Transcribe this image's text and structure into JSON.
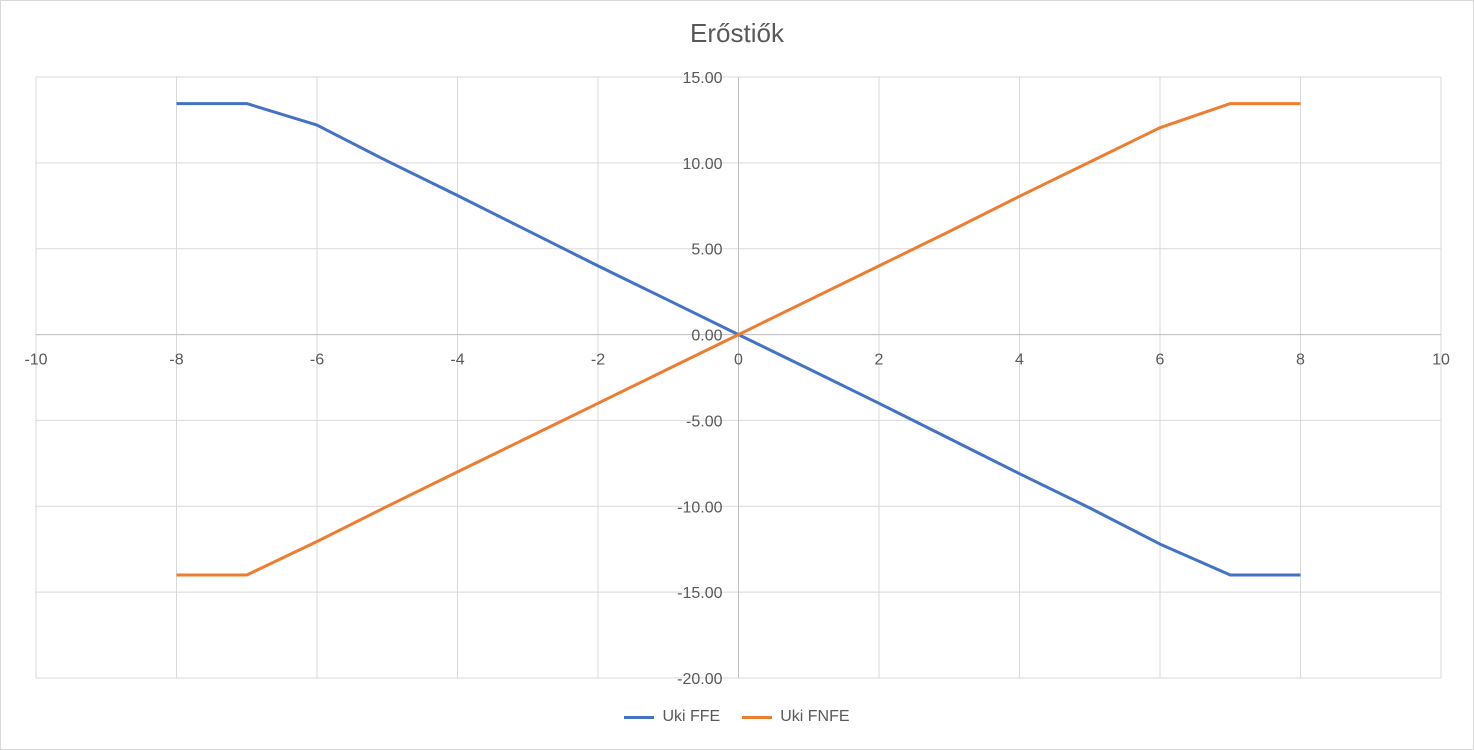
{
  "chart_data": {
    "type": "scatter",
    "title": "Erőstiők",
    "xlim": [
      -10,
      10
    ],
    "ylim": [
      -20,
      15
    ],
    "x_ticks": [
      "-10",
      "-8",
      "-6",
      "-4",
      "-2",
      "0",
      "2",
      "4",
      "6",
      "8",
      "10"
    ],
    "x_tick_values": [
      -10,
      -8,
      -6,
      -4,
      -2,
      0,
      2,
      4,
      6,
      8,
      10
    ],
    "y_ticks": [
      "15.00",
      "10.00",
      "5.00",
      "0.00",
      "-5.00",
      "-10.00",
      "-15.00",
      "-20.00"
    ],
    "y_tick_values": [
      15,
      10,
      5,
      0,
      -5,
      -10,
      -15,
      -20
    ],
    "grid": true,
    "legend_position": "bottom",
    "series": [
      {
        "name": "Uki FFE",
        "color": "#4472c4",
        "x": [
          -8,
          -7,
          -6,
          -5,
          -4,
          -3,
          -2,
          -1,
          0,
          1,
          2,
          3,
          4,
          5,
          6,
          7,
          8
        ],
        "y": [
          13.45,
          13.45,
          12.2,
          10.1,
          8.1,
          6.05,
          4.0,
          2.0,
          0,
          -2.0,
          -4.0,
          -6.05,
          -8.1,
          -10.1,
          -12.2,
          -14.0,
          -14.0
        ]
      },
      {
        "name": "Uki FNFE",
        "color": "#ed7d31",
        "x": [
          -8,
          -7,
          -6,
          -5,
          -4,
          -3,
          -2,
          -1,
          0,
          1,
          2,
          3,
          4,
          5,
          6,
          7,
          8
        ],
        "y": [
          -14.0,
          -14.0,
          -12.05,
          -10.0,
          -8.0,
          -6.0,
          -4.0,
          -2.0,
          0,
          2.0,
          4.0,
          6.0,
          8.05,
          10.05,
          12.05,
          13.45,
          13.45
        ]
      }
    ]
  }
}
